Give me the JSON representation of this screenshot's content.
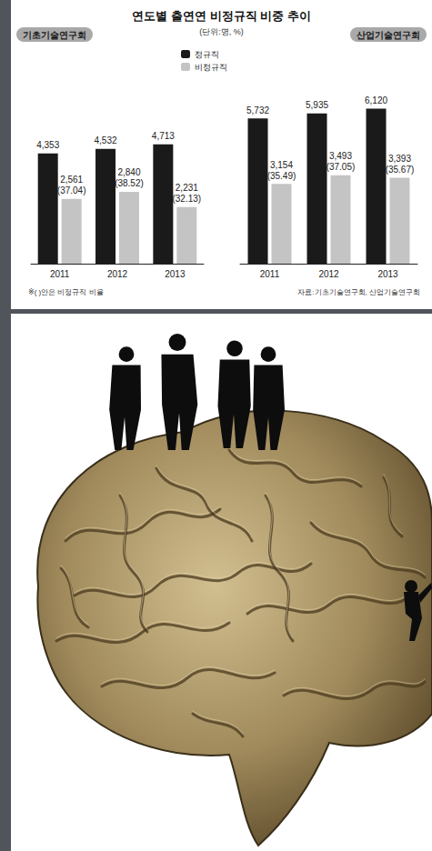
{
  "header": {
    "title": "연도별 출연연 비정규직 비중 추이",
    "subtitle": "(단위:명, %)"
  },
  "note": "※( )안은 비정규직 비율",
  "source": "자료:기초기술연구회, 산업기술연구회",
  "chart_data": [
    {
      "type": "bar",
      "title": "기초기술연구회",
      "categories": [
        "2011",
        "2012",
        "2013"
      ],
      "series": [
        {
          "name": "정규직",
          "color": "#1a1a1a",
          "values": [
            4353,
            4532,
            4713
          ],
          "value_labels": [
            "4,353",
            "4,532",
            "4,713"
          ]
        },
        {
          "name": "비정규직",
          "color": "#c4c4c4",
          "values": [
            2561,
            2840,
            2231
          ],
          "value_labels": [
            "2,561",
            "2,840",
            "2,231"
          ],
          "ratios": [
            37.04,
            38.52,
            32.13
          ],
          "ratio_labels": [
            "(37.04)",
            "(38.52)",
            "(32.13)"
          ]
        }
      ],
      "ylim": [
        0,
        7000
      ],
      "data_labels": true,
      "tick_labels": "x",
      "legend": "upper right"
    },
    {
      "type": "bar",
      "title": "산업기술연구회",
      "categories": [
        "2011",
        "2012",
        "2013"
      ],
      "series": [
        {
          "name": "정규직",
          "color": "#1a1a1a",
          "values": [
            5732,
            5935,
            6120
          ],
          "value_labels": [
            "5,732",
            "5,935",
            "6,120"
          ]
        },
        {
          "name": "비정규직",
          "color": "#c4c4c4",
          "values": [
            3154,
            3493,
            3393
          ],
          "value_labels": [
            "3,154",
            "3,493",
            "3,393"
          ],
          "ratios": [
            35.49,
            37.05,
            35.67
          ],
          "ratio_labels": [
            "(35.49)",
            "(37.05)",
            "(35.67)"
          ]
        }
      ],
      "ylim": [
        0,
        7000
      ],
      "data_labels": true,
      "tick_labels": "x"
    }
  ]
}
